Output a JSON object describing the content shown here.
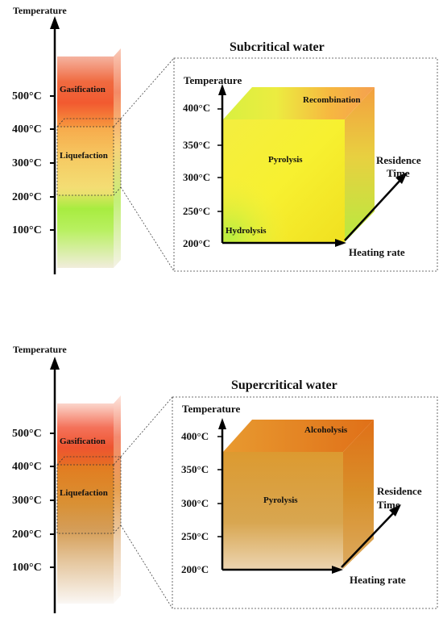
{
  "top": {
    "axis_label": "Temperature",
    "ticks": [
      "500°C",
      "400°C",
      "300°C",
      "200°C",
      "100°C"
    ],
    "zones": [
      "Gasification",
      "Liquefaction"
    ],
    "detail": {
      "title": "Subcritical water",
      "y_label": "Temperature",
      "y_ticks": [
        "400°C",
        "350°C",
        "300°C",
        "250°C",
        "200°C"
      ],
      "x_label": "Heating rate",
      "z_label_line1": "Residence",
      "z_label_line2": "Time",
      "regions": [
        "Recombination",
        "Pyrolysis",
        "Hydrolysis"
      ]
    }
  },
  "bottom": {
    "axis_label": "Temperature",
    "ticks": [
      "500°C",
      "400°C",
      "300°C",
      "200°C",
      "100°C"
    ],
    "zones": [
      "Gasification",
      "Liquefaction"
    ],
    "detail": {
      "title": "Supercritical water",
      "y_label": "Temperature",
      "y_ticks": [
        "400°C",
        "350°C",
        "300°C",
        "250°C",
        "200°C"
      ],
      "x_label": "Heating rate",
      "z_label_line1": "Residence",
      "z_label_line2": "Time",
      "regions": [
        "Alcoholysis",
        "Pyrolysis"
      ]
    }
  }
}
